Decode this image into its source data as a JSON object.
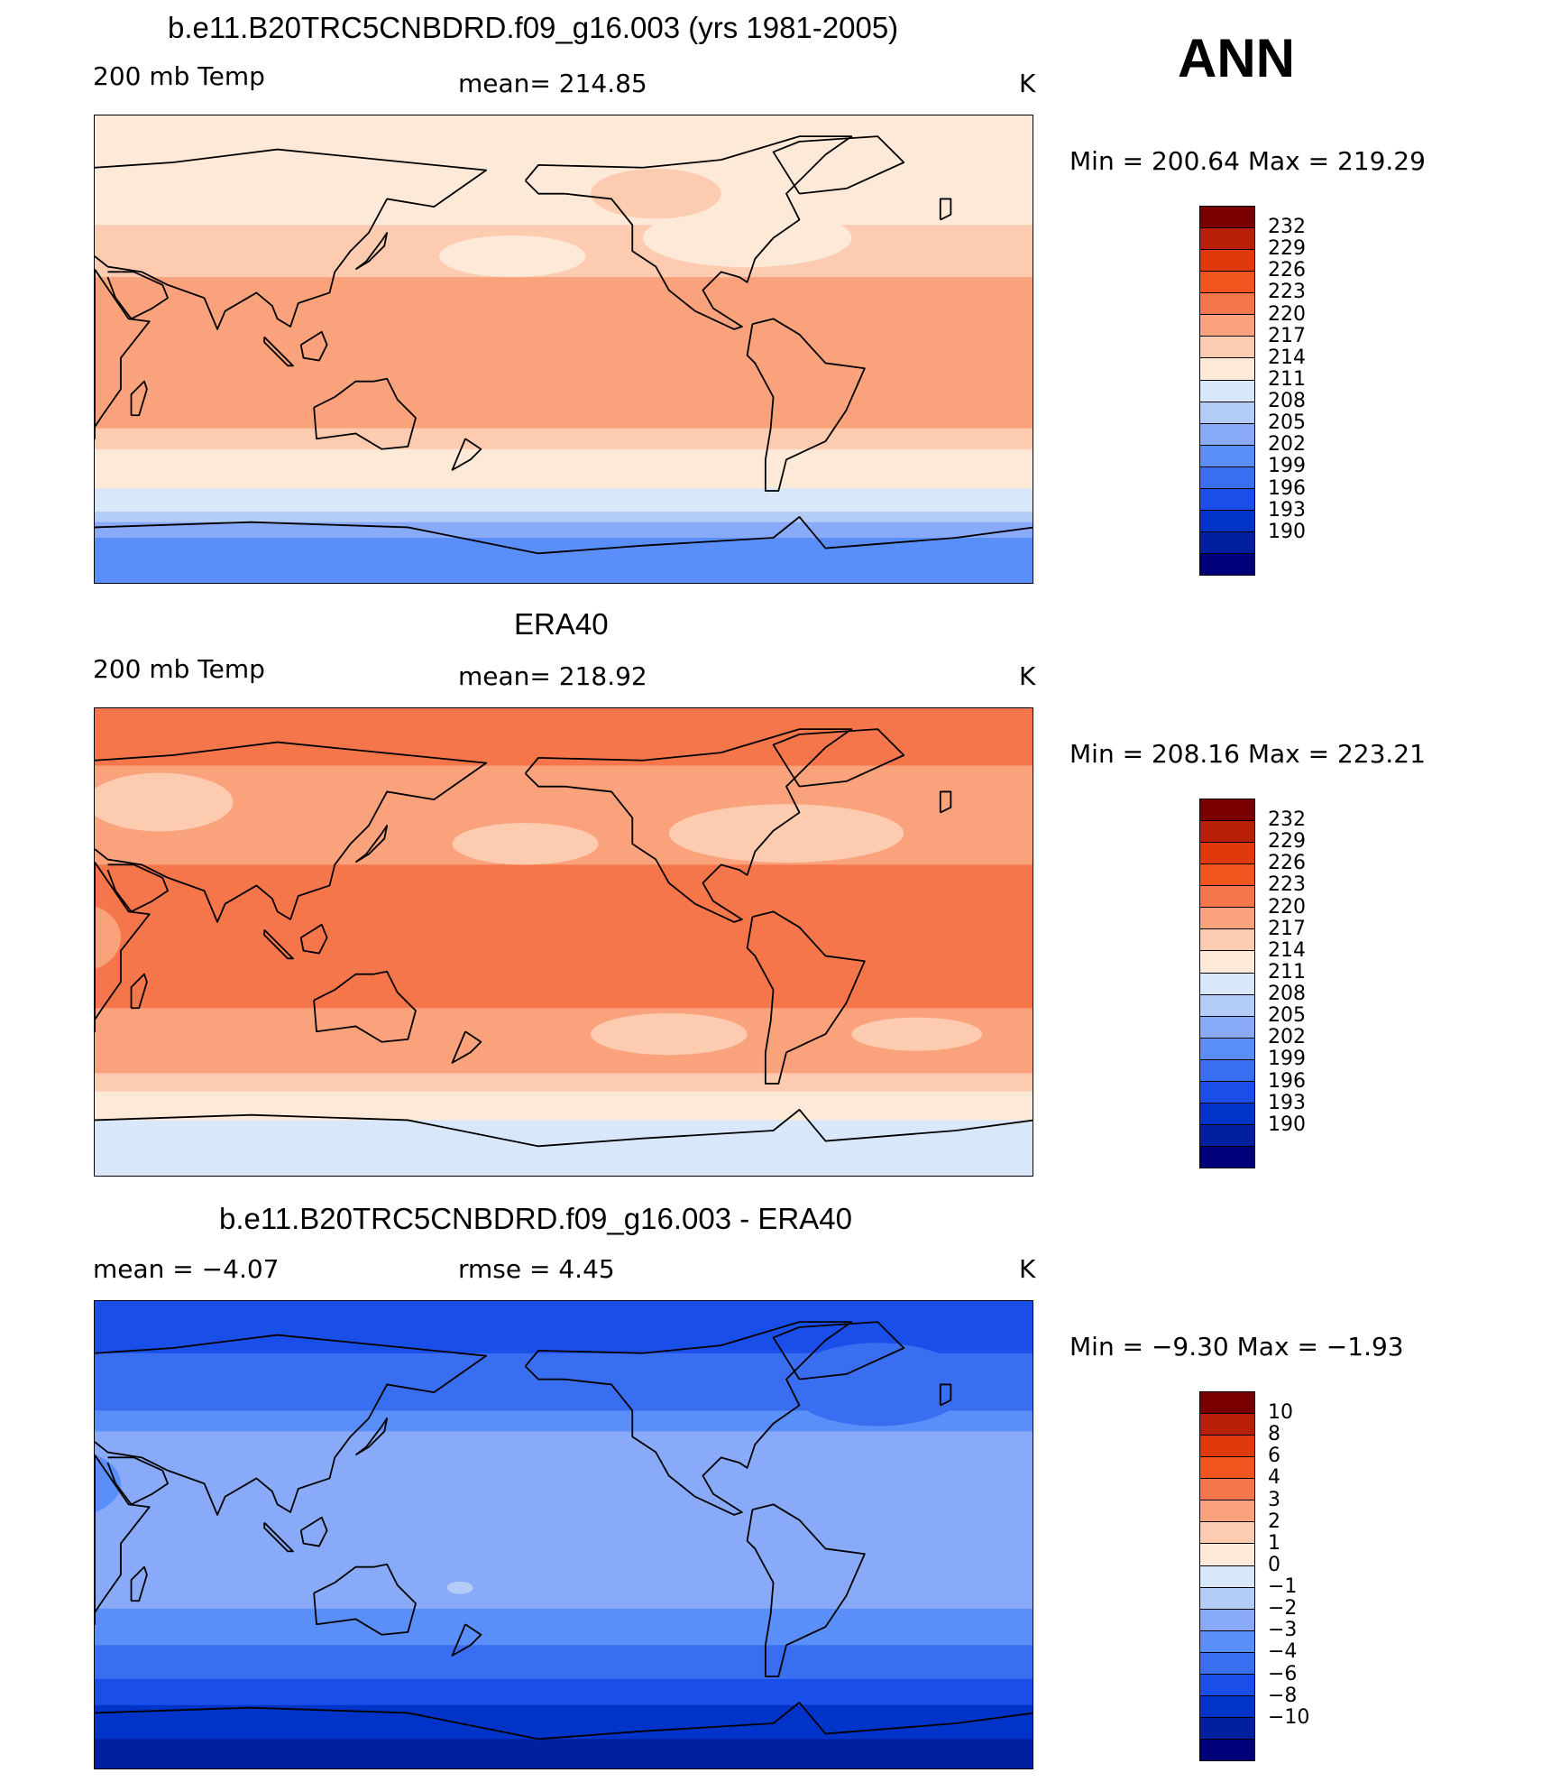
{
  "season": "ANN",
  "colors": [
    "#00007a",
    "#0020a0",
    "#0033c8",
    "#1a4ee8",
    "#3a6ef0",
    "#5a8ef8",
    "#88aaf8",
    "#b4ccf8",
    "#d8e8fa",
    "#fde9d8",
    "#fccbb0",
    "#f9a27c",
    "#f5764a",
    "#f2541e",
    "#e03a0c",
    "#b81e08",
    "#7a0000"
  ],
  "panels": [
    {
      "title": "b.e11.B20TRC5CNBDRD.f09_g16.003 (yrs 1981-2005)",
      "left_label": "200 mb Temp",
      "mid_label": "mean=  214.85",
      "units": "K",
      "minmax": "Min  =  200.64  Max  =  219.29",
      "levels": [
        "232",
        "229",
        "226",
        "223",
        "220",
        "217",
        "214",
        "211",
        "208",
        "205",
        "202",
        "199",
        "196",
        "193",
        "190"
      ],
      "bands": [
        {
          "lat": 90,
          "color": "#fde9d8"
        },
        {
          "lat": 48,
          "color": "#fccbb0"
        },
        {
          "lat": 28,
          "color": "#f9a27c"
        },
        {
          "lat": -30,
          "color": "#fccbb0"
        },
        {
          "lat": -38,
          "color": "#fde9d8"
        },
        {
          "lat": -53,
          "color": "#d8e8fa"
        },
        {
          "lat": -62,
          "color": "#b4ccf8"
        },
        {
          "lat": -66,
          "color": "#88aaf8"
        },
        {
          "lat": -72,
          "color": "#5a8ef8"
        },
        {
          "lat": -90,
          "color": "#5a8ef8"
        }
      ],
      "blobs": [
        {
          "lon": 190,
          "lat": 36,
          "rx": 28,
          "ry": 5,
          "color": "#fde9d8"
        },
        {
          "lon": 280,
          "lat": 43,
          "rx": 40,
          "ry": 7,
          "color": "#fde9d8"
        },
        {
          "lon": 348,
          "lat": 8,
          "rx": 14,
          "ry": 3,
          "color": "#f9a27c"
        },
        {
          "lon": 245,
          "lat": 60,
          "rx": 25,
          "ry": 6,
          "color": "#fccbb0"
        }
      ]
    },
    {
      "title": "ERA40",
      "left_label": "200 mb Temp",
      "mid_label": "mean=  218.92",
      "units": "K",
      "minmax": "Min  =  208.16  Max  =  223.21",
      "levels": [
        "232",
        "229",
        "226",
        "223",
        "220",
        "217",
        "214",
        "211",
        "208",
        "205",
        "202",
        "199",
        "196",
        "193",
        "190"
      ],
      "bands": [
        {
          "lat": 90,
          "color": "#f5764a"
        },
        {
          "lat": 68,
          "color": "#f9a27c"
        },
        {
          "lat": 40,
          "color": "#f9a27c"
        },
        {
          "lat": 30,
          "color": "#f5764a"
        },
        {
          "lat": -25,
          "color": "#f9a27c"
        },
        {
          "lat": -50,
          "color": "#fccbb0"
        },
        {
          "lat": -57,
          "color": "#fde9d8"
        },
        {
          "lat": -68,
          "color": "#d8e8fa"
        },
        {
          "lat": -90,
          "color": "#d8e8fa"
        }
      ],
      "blobs": [
        {
          "lon": 55,
          "lat": 54,
          "rx": 28,
          "ry": 7,
          "color": "#fccbb0"
        },
        {
          "lon": 295,
          "lat": 42,
          "rx": 45,
          "ry": 7,
          "color": "#fccbb0"
        },
        {
          "lon": 195,
          "lat": 38,
          "rx": 28,
          "ry": 5,
          "color": "#fccbb0"
        },
        {
          "lon": 250,
          "lat": -35,
          "rx": 30,
          "ry": 5,
          "color": "#fccbb0"
        },
        {
          "lon": 345,
          "lat": -35,
          "rx": 25,
          "ry": 4,
          "color": "#fccbb0"
        },
        {
          "lon": 25,
          "lat": 2,
          "rx": 15,
          "ry": 8,
          "color": "#f9a27c"
        }
      ]
    },
    {
      "title": "b.e11.B20TRC5CNBDRD.f09_g16.003 - ERA40",
      "left_label": "mean =   −4.07",
      "mid_label": "rmse =     4.45",
      "units": "K",
      "minmax": "Min  =    −9.30  Max  =    −1.93",
      "levels": [
        "10",
        "8",
        "6",
        "4",
        "3",
        "2",
        "1",
        "0",
        "−1",
        "−2",
        "−3",
        "−4",
        "−6",
        "−8",
        "−10"
      ],
      "bands": [
        {
          "lat": 90,
          "color": "#1a4ee8"
        },
        {
          "lat": 70,
          "color": "#3a6ef0"
        },
        {
          "lat": 48,
          "color": "#5a8ef8"
        },
        {
          "lat": 40,
          "color": "#88aaf8"
        },
        {
          "lat": -10,
          "color": "#88aaf8"
        },
        {
          "lat": -28,
          "color": "#5a8ef8"
        },
        {
          "lat": -42,
          "color": "#3a6ef0"
        },
        {
          "lat": -55,
          "color": "#1a4ee8"
        },
        {
          "lat": -65,
          "color": "#0033c8"
        },
        {
          "lat": -78,
          "color": "#0020a0"
        },
        {
          "lat": -90,
          "color": "#0020a0"
        }
      ],
      "blobs": [
        {
          "lon": 330,
          "lat": 58,
          "rx": 35,
          "ry": 10,
          "color": "#3a6ef0"
        },
        {
          "lon": 170,
          "lat": -20,
          "rx": 5,
          "ry": 1.5,
          "color": "#b4ccf8"
        },
        {
          "lon": 20,
          "lat": 20,
          "rx": 20,
          "ry": 8,
          "color": "#5a8ef8"
        },
        {
          "lon": 290,
          "lat": 25,
          "rx": 30,
          "ry": 7,
          "color": "#88aaf8"
        }
      ]
    }
  ]
}
